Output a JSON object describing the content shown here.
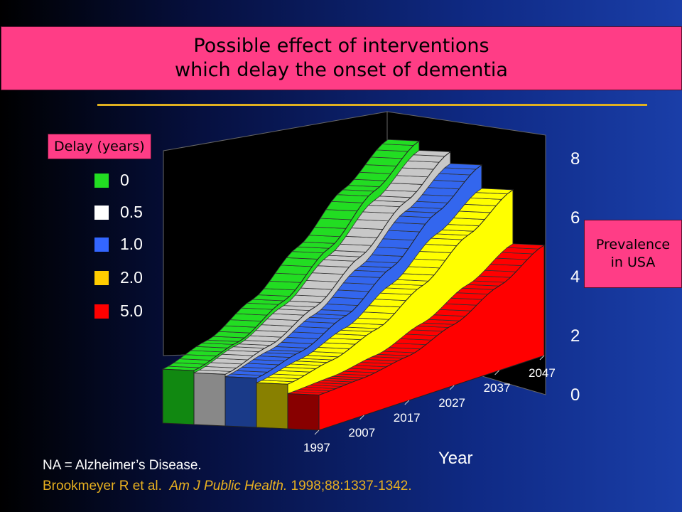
{
  "title": {
    "line1": "Possible effect of interventions",
    "line2": "which delay the onset of dementia"
  },
  "legend": {
    "title": "Delay (years)",
    "items": [
      {
        "label": "0",
        "color": "#22dd22"
      },
      {
        "label": "0.5",
        "color": "#ffffff"
      },
      {
        "label": "1.0",
        "color": "#3366ff"
      },
      {
        "label": "2.0",
        "color": "#ffcc00"
      },
      {
        "label": "5.0",
        "color": "#ff0000"
      }
    ]
  },
  "prevalence_label": {
    "line1": "Prevalence",
    "line2": "in USA"
  },
  "footnote": "NA = Alzheimer’s Disease.",
  "citation": {
    "authors": "Brookmeyer R et al.",
    "journal": "Am J Public Health.",
    "details": "1998;88:1337-1342."
  },
  "chart_data": {
    "type": "area",
    "xlabel": "Year",
    "x": [
      1997,
      2007,
      2017,
      2027,
      2037,
      2047
    ],
    "y_ticks": [
      "0",
      "2",
      "4",
      "6",
      "8"
    ],
    "ylim": [
      0,
      8
    ],
    "series": [
      {
        "name": "0",
        "color": "#22dd22",
        "front_color": "#118811",
        "values": [
          2.3,
          2.9,
          4.0,
          5.6,
          7.4,
          8.9
        ]
      },
      {
        "name": "0.5",
        "color": "#c8c8c8",
        "front_color": "#888888",
        "values": [
          2.2,
          2.8,
          3.8,
          5.3,
          7.0,
          8.5
        ]
      },
      {
        "name": "1.0",
        "color": "#3366ee",
        "front_color": "#1a3a88",
        "values": [
          2.1,
          2.6,
          3.5,
          4.9,
          6.6,
          8.0
        ]
      },
      {
        "name": "2.0",
        "color": "#ffff00",
        "front_color": "#888000",
        "values": [
          1.9,
          2.3,
          3.0,
          4.2,
          5.7,
          7.0
        ]
      },
      {
        "name": "5.0",
        "color": "#ff0000",
        "front_color": "#880000",
        "values": [
          1.5,
          1.6,
          1.9,
          2.6,
          3.6,
          4.7
        ]
      }
    ]
  }
}
